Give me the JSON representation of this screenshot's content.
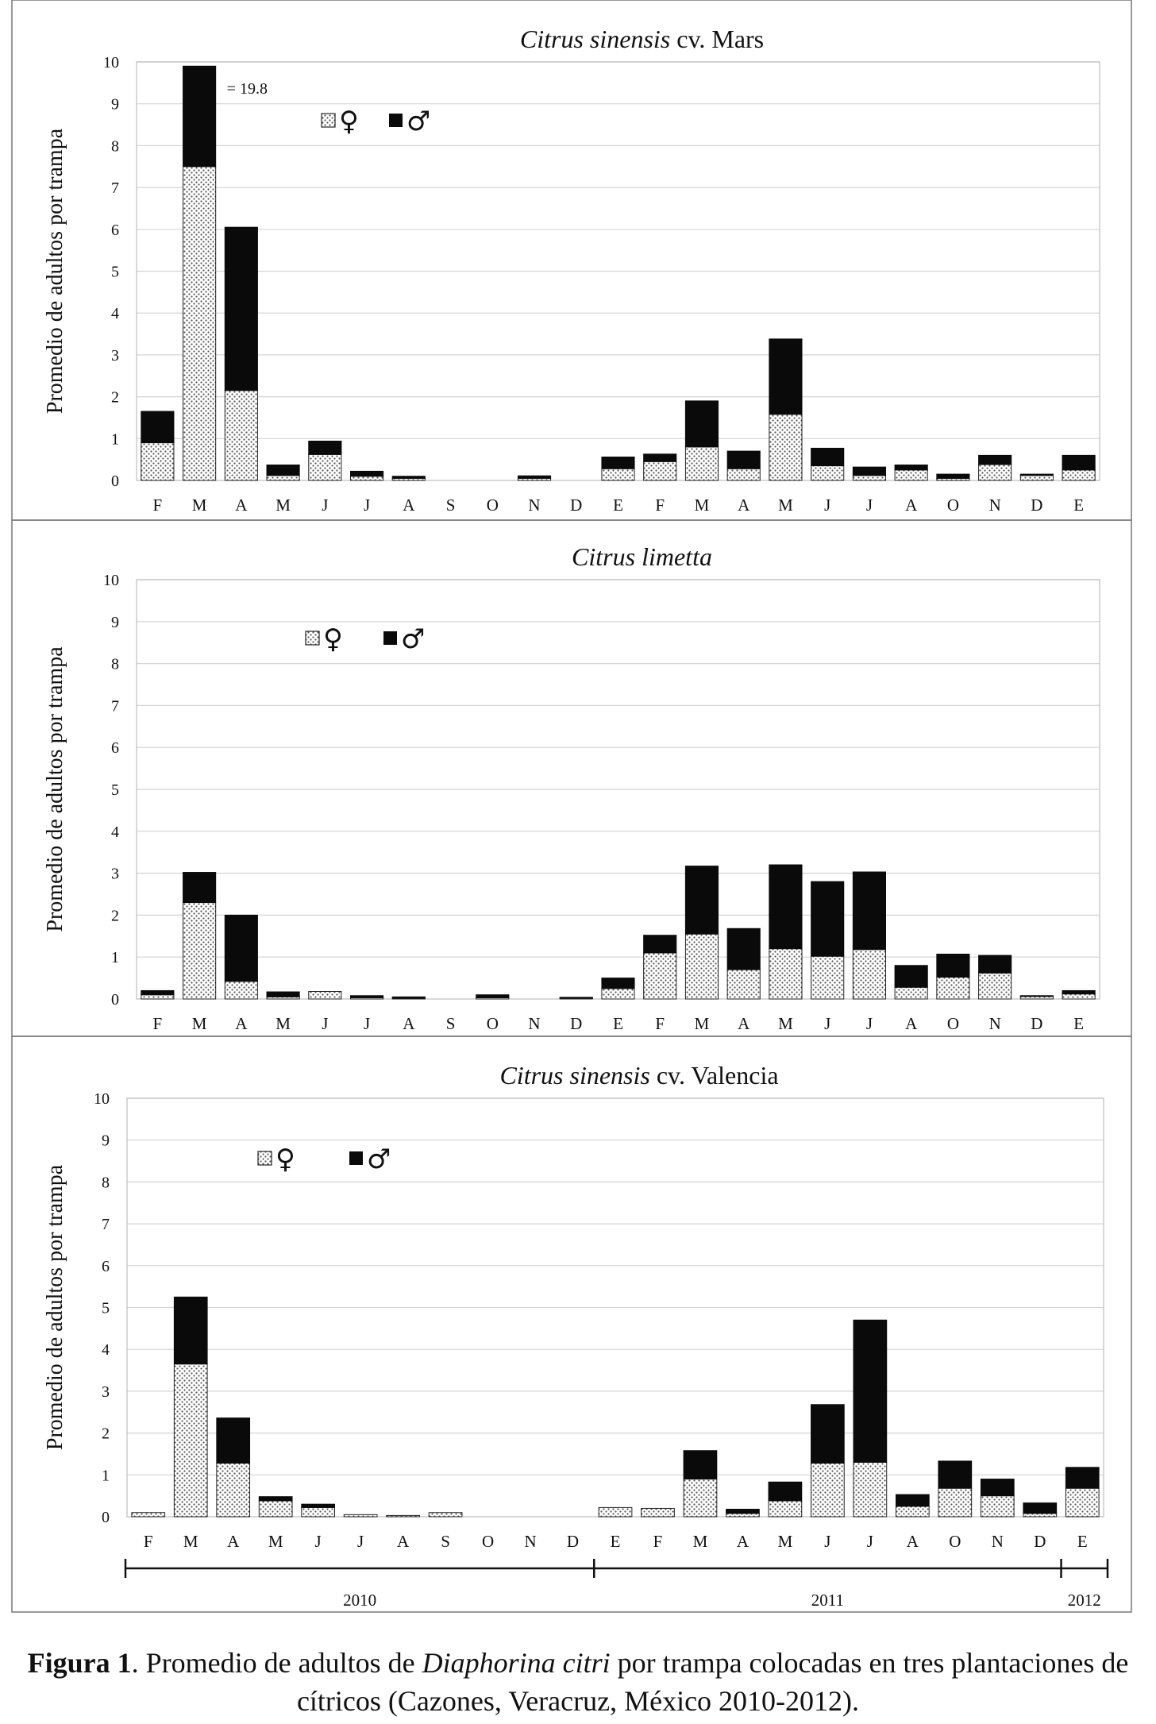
{
  "chart_data": [
    {
      "type": "bar",
      "stacked": true,
      "title_italic": "Citrus sinensis",
      "title_rest": " cv. Mars",
      "ylabel": "Promedio de adultos por trampa",
      "ylim": [
        0,
        10
      ],
      "yticks": [
        "0",
        "1",
        "2",
        "3",
        "4",
        "5",
        "6",
        "7",
        "8",
        "9",
        "10"
      ],
      "categories": [
        "F",
        "M",
        "A",
        "M",
        "J",
        "J",
        "A",
        "S",
        "O",
        "N",
        "D",
        "E",
        "F",
        "M",
        "A",
        "M",
        "J",
        "J",
        "A",
        "O",
        "N",
        "D",
        "E"
      ],
      "series": [
        {
          "name": "♀",
          "values": [
            0.9,
            7.5,
            2.15,
            0.12,
            0.62,
            0.1,
            0.05,
            0,
            0,
            0.05,
            0,
            0.28,
            0.45,
            0.8,
            0.28,
            1.58,
            0.35,
            0.12,
            0.25,
            0.05,
            0.38,
            0.12,
            0.25
          ]
        },
        {
          "name": "♂",
          "values": [
            0.75,
            2.4,
            3.9,
            0.25,
            0.32,
            0.12,
            0.05,
            0,
            0,
            0.06,
            0,
            0.28,
            0.18,
            1.1,
            0.42,
            1.8,
            0.42,
            0.2,
            0.12,
            0.1,
            0.22,
            0.03,
            0.35
          ]
        }
      ],
      "annotation": "= 19.8",
      "annotation_bar": 1,
      "legend": [
        "♀",
        "♂"
      ]
    },
    {
      "type": "bar",
      "stacked": true,
      "title_italic": "Citrus limetta",
      "title_rest": "",
      "ylabel": "Promedio de adultos por trampa",
      "ylim": [
        0,
        10
      ],
      "yticks": [
        "0",
        "1",
        "2",
        "3",
        "4",
        "5",
        "6",
        "7",
        "8",
        "9",
        "10"
      ],
      "categories": [
        "F",
        "M",
        "A",
        "M",
        "J",
        "J",
        "A",
        "S",
        "O",
        "N",
        "D",
        "E",
        "F",
        "M",
        "A",
        "M",
        "J",
        "J",
        "A",
        "O",
        "N",
        "D",
        "E"
      ],
      "series": [
        {
          "name": "♀",
          "values": [
            0.1,
            2.3,
            0.42,
            0.05,
            0.18,
            0.03,
            0.02,
            0,
            0.03,
            0,
            0.02,
            0.25,
            1.1,
            1.55,
            0.7,
            1.2,
            1.02,
            1.18,
            0.28,
            0.52,
            0.62,
            0.06,
            0.12
          ]
        },
        {
          "name": "♂",
          "values": [
            0.1,
            0.72,
            1.58,
            0.12,
            0,
            0.05,
            0.03,
            0,
            0.07,
            0,
            0.02,
            0.25,
            0.42,
            1.62,
            0.98,
            2.0,
            1.78,
            1.85,
            0.52,
            0.55,
            0.42,
            0.02,
            0.08
          ]
        }
      ],
      "legend": [
        "♀",
        "♂"
      ]
    },
    {
      "type": "bar",
      "stacked": true,
      "title_italic": "Citrus sinensis",
      "title_rest": "  cv. Valencia",
      "ylabel": "Promedio de adultos por trampa",
      "ylim": [
        0,
        10
      ],
      "yticks": [
        "0",
        "1",
        "2",
        "3",
        "4",
        "5",
        "6",
        "7",
        "8",
        "9",
        "10"
      ],
      "categories": [
        "F",
        "M",
        "A",
        "M",
        "J",
        "J",
        "A",
        "S",
        "O",
        "N",
        "D",
        "E",
        "F",
        "M",
        "A",
        "M",
        "J",
        "J",
        "A",
        "O",
        "N",
        "D",
        "E"
      ],
      "series": [
        {
          "name": "♀",
          "values": [
            0.1,
            3.65,
            1.28,
            0.38,
            0.22,
            0.05,
            0.03,
            0.1,
            0,
            0,
            0,
            0.22,
            0.2,
            0.9,
            0.08,
            0.38,
            1.28,
            1.3,
            0.25,
            0.68,
            0.5,
            0.08,
            0.68
          ]
        },
        {
          "name": "♂",
          "values": [
            0,
            1.6,
            1.08,
            0.1,
            0.08,
            0,
            0,
            0,
            0,
            0,
            0,
            0,
            0,
            0.68,
            0.1,
            0.45,
            1.4,
            3.4,
            0.28,
            0.65,
            0.4,
            0.25,
            0.5
          ]
        }
      ],
      "legend": [
        "♀",
        "♂"
      ],
      "years": [
        {
          "label": "2010",
          "from": 0,
          "to": 10
        },
        {
          "label": "2011",
          "from": 11,
          "to": 21
        },
        {
          "label": "2012",
          "from": 22,
          "to": 22
        }
      ]
    }
  ],
  "caption": {
    "label": "Figura 1",
    "text_before": ". Promedio de adultos de ",
    "species": "Diaphorina citri",
    "text_after_line1": " por trampa colocadas en tres plantaciones de",
    "line2": "cítricos (Cazones, Veracruz, México 2010-2012)."
  }
}
